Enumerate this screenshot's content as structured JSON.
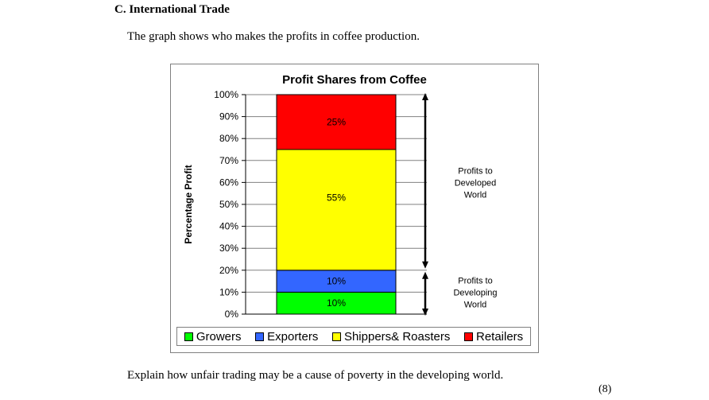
{
  "document": {
    "section_heading": "C. International Trade",
    "intro_text": "The graph shows who makes the profits in coffee production.",
    "question_text": "Explain how unfair trading may be a cause of poverty in the developing world.",
    "marks": "(8)"
  },
  "chart_data": {
    "type": "bar",
    "stacked": true,
    "title": "Profit Shares from Coffee",
    "ylabel": "Percentage Profit",
    "xlabel": "",
    "ylim": [
      0,
      100
    ],
    "y_ticks": [
      "0%",
      "10%",
      "20%",
      "30%",
      "40%",
      "50%",
      "60%",
      "70%",
      "80%",
      "90%",
      "100%"
    ],
    "grid": true,
    "legend_position": "bottom",
    "series": [
      {
        "name": "Growers",
        "value": 10,
        "label": "10%",
        "color": "#00ff00"
      },
      {
        "name": "Exporters",
        "value": 10,
        "label": "10%",
        "color": "#3366ff"
      },
      {
        "name": "Shippers& Roasters",
        "value": 55,
        "label": "55%",
        "color": "#ffff00"
      },
      {
        "name": "Retailers",
        "value": 25,
        "label": "25%",
        "color": "#ff0000"
      }
    ],
    "annotations": [
      {
        "text_lines": [
          "Profits to",
          "Developed",
          "World"
        ],
        "from": 20,
        "to": 100
      },
      {
        "text_lines": [
          "Profits to",
          "Developing",
          "World"
        ],
        "from": 0,
        "to": 20
      }
    ]
  }
}
